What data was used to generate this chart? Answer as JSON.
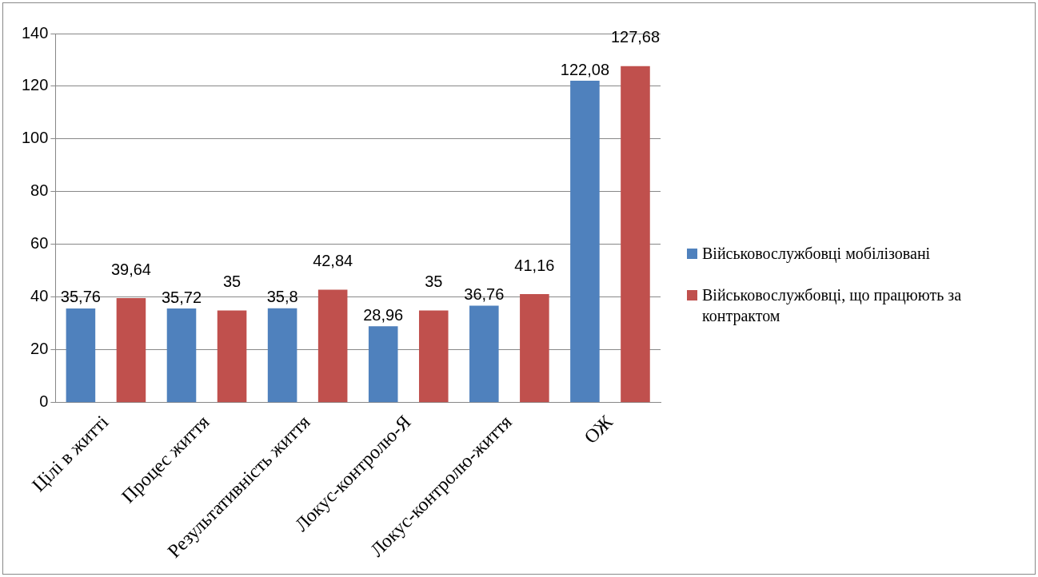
{
  "chart_data": {
    "type": "bar",
    "categories": [
      "Цілі в житті",
      "Процес життя",
      "Результативність життя",
      "Локус-контролю-Я",
      "Локус-контролю-життя",
      "ОЖ"
    ],
    "series": [
      {
        "name": "Військовослужбовці мобілізовані",
        "color": "#4f81bd",
        "values": [
          35.76,
          35.72,
          35.8,
          28.96,
          36.76,
          122.08
        ],
        "value_labels": [
          "35,76",
          "35,72",
          "35,8",
          "28,96",
          "36,76",
          "122,08"
        ]
      },
      {
        "name": "Військовослужбовці, що працюють за контрактом",
        "color": "#c0504d",
        "values": [
          39.64,
          35,
          42.84,
          35,
          41.16,
          127.68
        ],
        "value_labels": [
          "39,64",
          "35",
          "42,84",
          "35",
          "41,16",
          "127,68"
        ]
      }
    ],
    "ylim": [
      0,
      140
    ],
    "yticks": [
      0,
      20,
      40,
      60,
      80,
      100,
      120,
      140
    ],
    "grid": "y",
    "legend": "right"
  }
}
